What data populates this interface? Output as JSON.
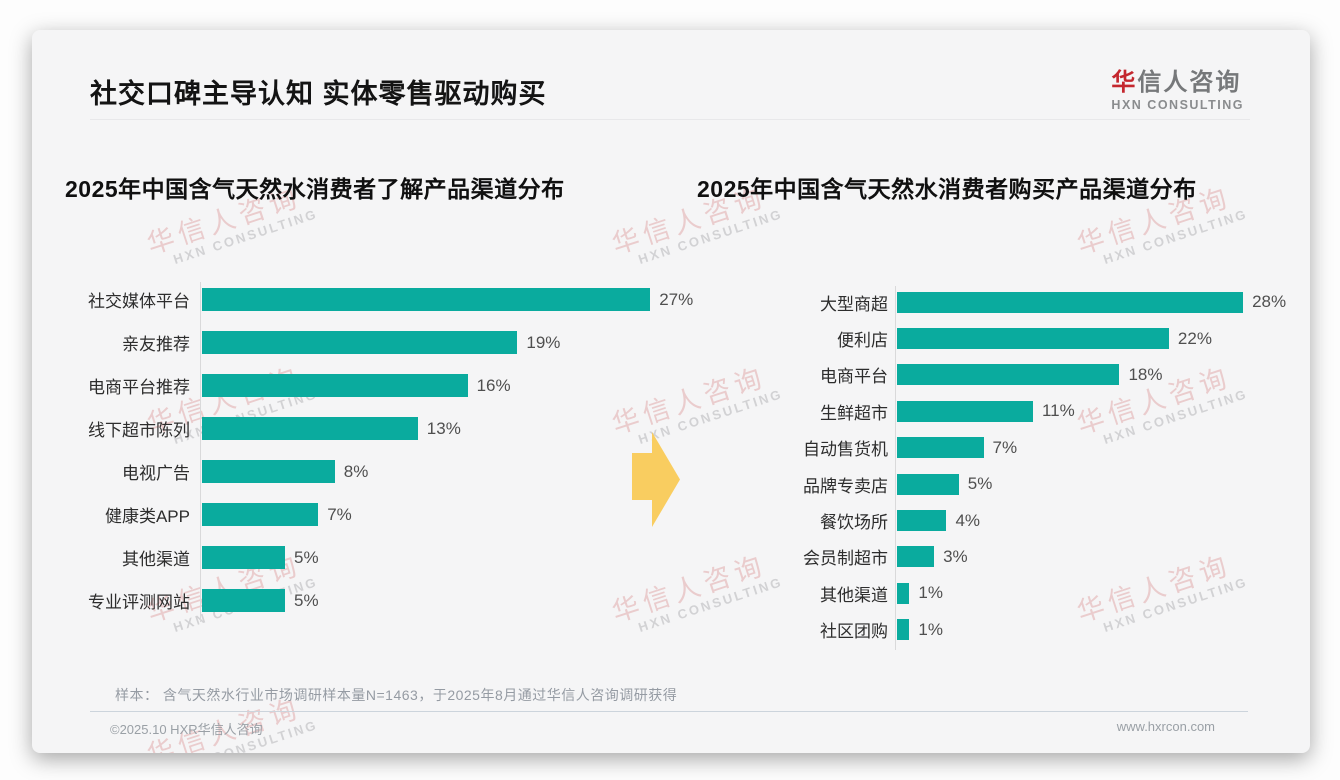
{
  "header": {
    "title": "社交口碑主导认知 实体零售驱动购买"
  },
  "logo": {
    "cn_first": "华",
    "cn_rest": "信人咨询",
    "en": "HXN CONSULTING"
  },
  "watermark": {
    "line1": "华信人咨询",
    "line2": "HXN CONSULTING"
  },
  "colors": {
    "bar": "#0aab9e",
    "arrow": "#f9cd60",
    "logo_red": "#c4272e"
  },
  "chart_data": [
    {
      "type": "bar",
      "orientation": "horizontal",
      "title": "2025年中国含气天然水消费者了解产品渠道分布",
      "categories": [
        "社交媒体平台",
        "亲友推荐",
        "电商平台推荐",
        "线下超市陈列",
        "电视广告",
        "健康类APP",
        "其他渠道",
        "专业评测网站"
      ],
      "values": [
        27,
        19,
        16,
        13,
        8,
        7,
        5,
        5
      ],
      "unit": "%",
      "xlabel": "",
      "ylabel": "",
      "xlim": [
        0,
        30
      ],
      "grid": false,
      "legend": false
    },
    {
      "type": "bar",
      "orientation": "horizontal",
      "title": "2025年中国含气天然水消费者购买产品渠道分布",
      "categories": [
        "大型商超",
        "便利店",
        "电商平台",
        "生鲜超市",
        "自动售货机",
        "品牌专卖店",
        "餐饮场所",
        "会员制超市",
        "其他渠道",
        "社区团购"
      ],
      "values": [
        28,
        22,
        18,
        11,
        7,
        5,
        4,
        3,
        1,
        1
      ],
      "unit": "%",
      "xlabel": "",
      "ylabel": "",
      "xlim": [
        0,
        30
      ],
      "grid": false,
      "legend": false
    }
  ],
  "footnote": {
    "sample_note": "样本： 含气天然水行业市场调研样本量N=1463，于2025年8月通过华信人咨询调研获得"
  },
  "footer": {
    "copyright": "©2025.10 HXR华信人咨询",
    "website": "www.hxrcon.com"
  }
}
